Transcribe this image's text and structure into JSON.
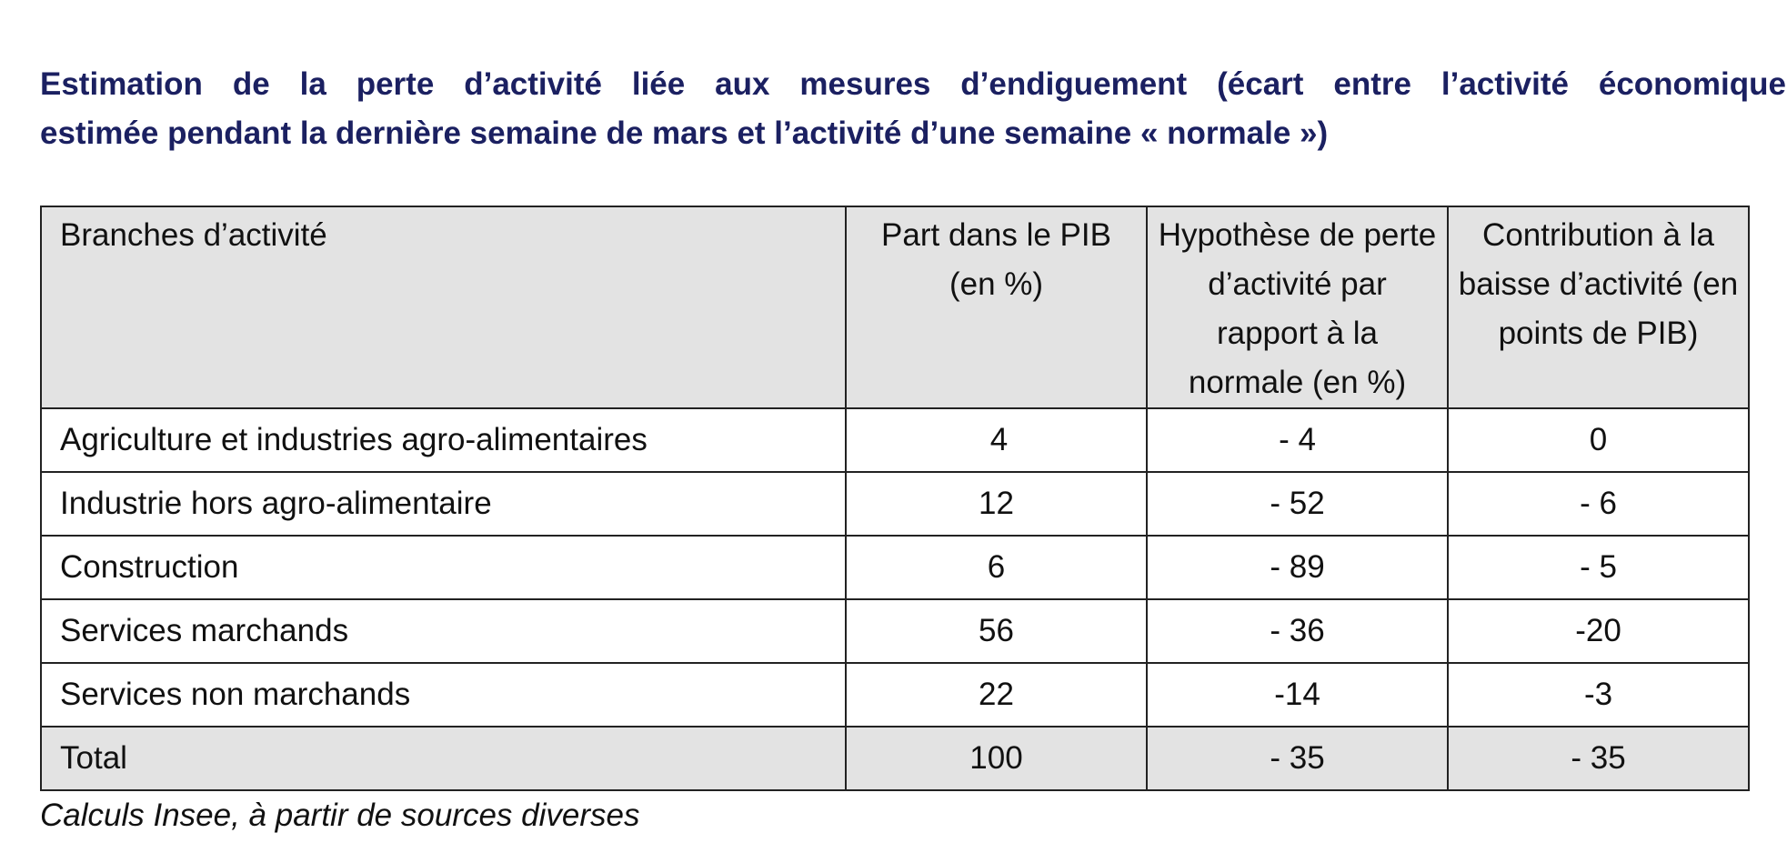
{
  "title": {
    "line1": "Estimation de la perte d’activité liée aux mesures d’endiguement (écart entre l’activité économique",
    "line2": "estimée pendant la dernière semaine de mars et l’activité d’une semaine « normale »)"
  },
  "table": {
    "headers": [
      "Branches d’activité",
      "Part dans le PIB (en %)",
      "Hypothèse de perte d’activité par rapport à la normale (en %)",
      "Contribution à la baisse d’activité (en points de PIB)"
    ],
    "rows": [
      [
        "Agriculture et industries agro-alimentaires",
        "4",
        "- 4",
        "0"
      ],
      [
        "Industrie hors agro-alimentaire",
        "12",
        "- 52",
        "- 6"
      ],
      [
        "Construction",
        "6",
        "- 89",
        "- 5"
      ],
      [
        "Services marchands",
        "56",
        "- 36",
        "-20"
      ],
      [
        "Services non marchands",
        "22",
        "-14",
        "-3"
      ]
    ],
    "total": [
      "Total",
      "100",
      "- 35",
      "- 35"
    ]
  },
  "source": "Calculs Insee, à partir de sources diverses"
}
